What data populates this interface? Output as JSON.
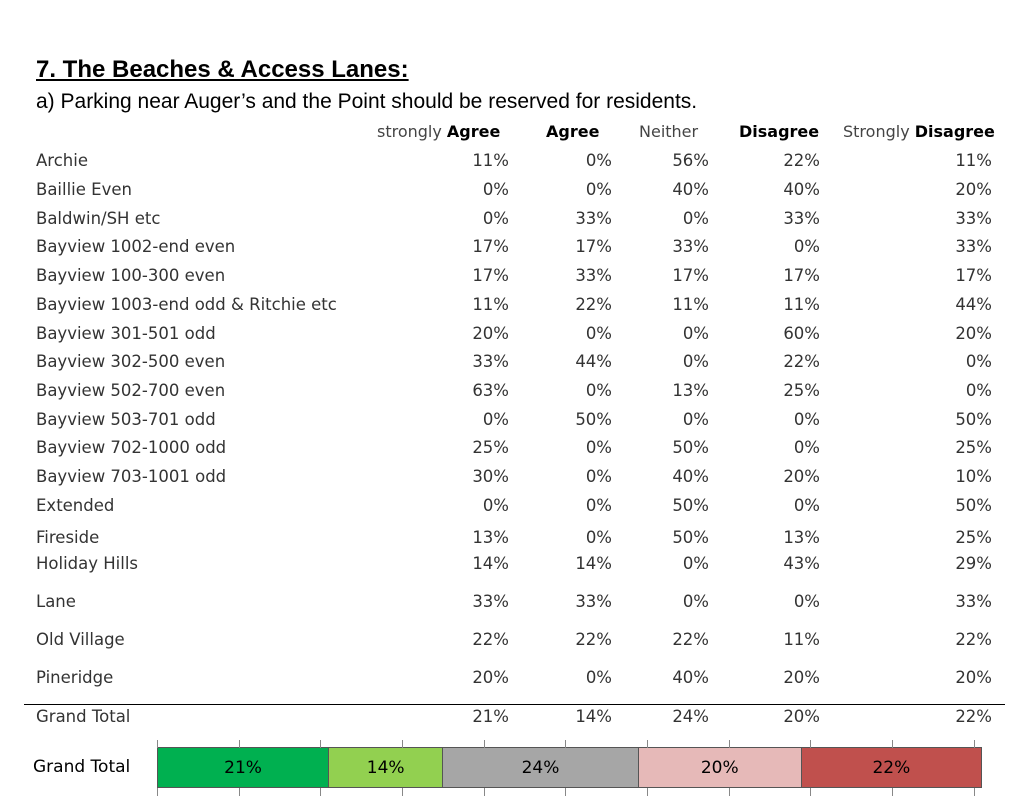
{
  "heading": "7.  The Beaches & Access Lanes:",
  "subheading": "a)   Parking near Auger’s and the Point should be reserved for residents.",
  "columns": [
    {
      "pre": "strongly ",
      "bold": "Agree",
      "post": ""
    },
    {
      "pre": "",
      "bold": "Agree",
      "post": ""
    },
    {
      "pre": "Neither",
      "bold": "",
      "post": ""
    },
    {
      "pre": "",
      "bold": "Disagree",
      "post": ""
    },
    {
      "pre": "Strongly ",
      "bold": "Disagree",
      "post": ""
    }
  ],
  "rows": [
    {
      "label": "Archie",
      "values": [
        "11%",
        "0%",
        "56%",
        "22%",
        "11%"
      ]
    },
    {
      "label": "Baillie Even",
      "values": [
        "0%",
        "0%",
        "40%",
        "40%",
        "20%"
      ]
    },
    {
      "label": "Baldwin/SH etc",
      "values": [
        "0%",
        "33%",
        "0%",
        "33%",
        "33%"
      ]
    },
    {
      "label": "Bayview 1002-end even",
      "values": [
        "17%",
        "17%",
        "33%",
        "0%",
        "33%"
      ]
    },
    {
      "label": "Bayview 100-300 even",
      "values": [
        "17%",
        "33%",
        "17%",
        "17%",
        "17%"
      ]
    },
    {
      "label": "Bayview 1003-end odd & Ritchie etc",
      "values": [
        "11%",
        "22%",
        "11%",
        "11%",
        "44%"
      ]
    },
    {
      "label": "Bayview 301-501 odd",
      "values": [
        "20%",
        "0%",
        "0%",
        "60%",
        "20%"
      ]
    },
    {
      "label": "Bayview 302-500 even",
      "values": [
        "33%",
        "44%",
        "0%",
        "22%",
        "0%"
      ]
    },
    {
      "label": "Bayview 502-700 even",
      "values": [
        "63%",
        "0%",
        "13%",
        "25%",
        "0%"
      ]
    },
    {
      "label": "Bayview 503-701 odd",
      "values": [
        "0%",
        "50%",
        "0%",
        "0%",
        "50%"
      ]
    },
    {
      "label": "Bayview 702-1000 odd",
      "values": [
        "25%",
        "0%",
        "50%",
        "0%",
        "25%"
      ]
    },
    {
      "label": "Bayview 703-1001 odd",
      "values": [
        "30%",
        "0%",
        "40%",
        "20%",
        "10%"
      ]
    },
    {
      "label": "Extended",
      "values": [
        "0%",
        "0%",
        "50%",
        "0%",
        "50%"
      ]
    },
    {
      "label": "Fireside",
      "values": [
        "13%",
        "0%",
        "50%",
        "13%",
        "25%"
      ]
    },
    {
      "label": "Holiday Hills",
      "values": [
        "14%",
        "14%",
        "0%",
        "43%",
        "29%"
      ]
    },
    {
      "label": "Lane",
      "values": [
        "33%",
        "33%",
        "0%",
        "0%",
        "33%"
      ]
    },
    {
      "label": "Old Village",
      "values": [
        "22%",
        "22%",
        "22%",
        "11%",
        "22%"
      ]
    },
    {
      "label": "Pineridge",
      "values": [
        "20%",
        "0%",
        "40%",
        "20%",
        "20%"
      ]
    }
  ],
  "grand_total": {
    "label": "Grand Total",
    "values": [
      "21%",
      "14%",
      "24%",
      "20%",
      "22%"
    ]
  },
  "chart_data": {
    "type": "bar",
    "orientation": "horizontal-stacked",
    "categories": [
      "Grand Total"
    ],
    "series": [
      {
        "name": "strongly Agree",
        "values": [
          21
        ],
        "label": "21%",
        "color": "#00b050"
      },
      {
        "name": "Agree",
        "values": [
          14
        ],
        "label": "14%",
        "color": "#92d050"
      },
      {
        "name": "Neither",
        "values": [
          24
        ],
        "label": "24%",
        "color": "#a6a6a6"
      },
      {
        "name": "Disagree",
        "values": [
          20
        ],
        "label": "20%",
        "color": "#e6b9b8"
      },
      {
        "name": "Strongly Disagree",
        "values": [
          22
        ],
        "label": "22%",
        "color": "#c0504d"
      }
    ],
    "title": "",
    "xlim": [
      0,
      101
    ]
  }
}
